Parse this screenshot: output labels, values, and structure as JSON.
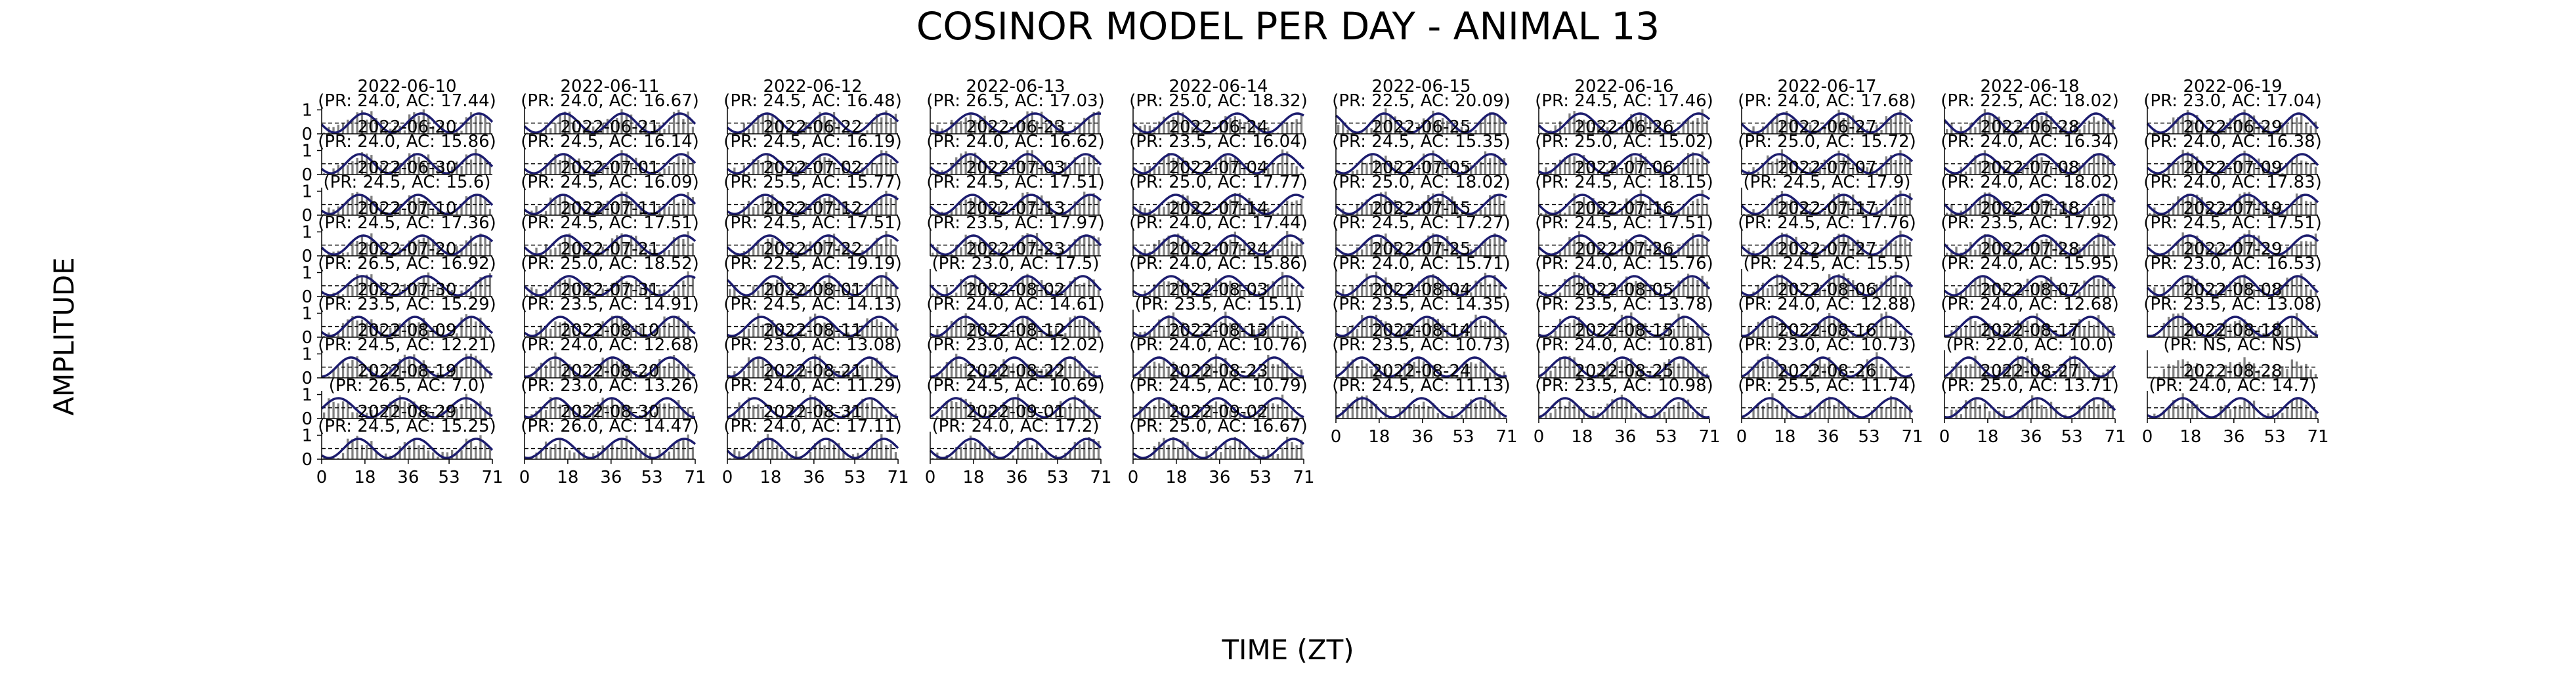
{
  "figure": {
    "title": "COSINOR MODEL PER DAY - ANIMAL 13",
    "xlabel": "TIME (ZT)",
    "ylabel": "AMPLITUDE"
  },
  "colors": {
    "bar": "#808080",
    "fit_curve": "#1c1c6e",
    "background": "#ffffff",
    "axis": "#000000",
    "mesor_line": "#000000"
  },
  "chart_data": {
    "type": "bar",
    "layout": {
      "rows": 9,
      "cols": 10
    },
    "x_ticks": [
      "0",
      "18",
      "36",
      "53",
      "71"
    ],
    "y_ticks": [
      "0",
      "1"
    ],
    "x_range": [
      0,
      71
    ],
    "y_range": [
      0,
      1.15
    ],
    "series_types": [
      "bar (normalized activity)",
      "line (cosinor fit)",
      "dashed line (mesor)"
    ],
    "panels": [
      {
        "date": "2022-06-10",
        "period": "24.0",
        "acrophase": "17.44",
        "label": "(PR: 24.0, AC: 17.44)"
      },
      {
        "date": "2022-06-11",
        "period": "24.0",
        "acrophase": "16.67",
        "label": "(PR: 24.0, AC: 16.67)"
      },
      {
        "date": "2022-06-12",
        "period": "24.5",
        "acrophase": "16.48",
        "label": "(PR: 24.5, AC: 16.48)"
      },
      {
        "date": "2022-06-13",
        "period": "26.5",
        "acrophase": "17.03",
        "label": "(PR: 26.5, AC: 17.03)"
      },
      {
        "date": "2022-06-14",
        "period": "25.0",
        "acrophase": "18.32",
        "label": "(PR: 25.0, AC: 18.32)"
      },
      {
        "date": "2022-06-15",
        "period": "22.5",
        "acrophase": "20.09",
        "label": "(PR: 22.5, AC: 20.09)"
      },
      {
        "date": "2022-06-16",
        "period": "24.5",
        "acrophase": "17.46",
        "label": "(PR: 24.5, AC: 17.46)"
      },
      {
        "date": "2022-06-17",
        "period": "24.0",
        "acrophase": "17.68",
        "label": "(PR: 24.0, AC: 17.68)"
      },
      {
        "date": "2022-06-18",
        "period": "22.5",
        "acrophase": "18.02",
        "label": "(PR: 22.5, AC: 18.02)"
      },
      {
        "date": "2022-06-19",
        "period": "23.0",
        "acrophase": "17.04",
        "label": "(PR: 23.0, AC: 17.04)"
      },
      {
        "date": "2022-06-20",
        "period": "24.0",
        "acrophase": "15.86",
        "label": "(PR: 24.0, AC: 15.86)"
      },
      {
        "date": "2022-06-21",
        "period": "24.5",
        "acrophase": "16.14",
        "label": "(PR: 24.5, AC: 16.14)"
      },
      {
        "date": "2022-06-22",
        "period": "24.5",
        "acrophase": "16.19",
        "label": "(PR: 24.5, AC: 16.19)"
      },
      {
        "date": "2022-06-23",
        "period": "24.0",
        "acrophase": "16.62",
        "label": "(PR: 24.0, AC: 16.62)"
      },
      {
        "date": "2022-06-24",
        "period": "23.5",
        "acrophase": "16.04",
        "label": "(PR: 23.5, AC: 16.04)"
      },
      {
        "date": "2022-06-25",
        "period": "24.5",
        "acrophase": "15.35",
        "label": "(PR: 24.5, AC: 15.35)"
      },
      {
        "date": "2022-06-26",
        "period": "25.0",
        "acrophase": "15.02",
        "label": "(PR: 25.0, AC: 15.02)"
      },
      {
        "date": "2022-06-27",
        "period": "25.0",
        "acrophase": "15.72",
        "label": "(PR: 25.0, AC: 15.72)"
      },
      {
        "date": "2022-06-28",
        "period": "24.0",
        "acrophase": "16.34",
        "label": "(PR: 24.0, AC: 16.34)"
      },
      {
        "date": "2022-06-29",
        "period": "24.0",
        "acrophase": "16.38",
        "label": "(PR: 24.0, AC: 16.38)"
      },
      {
        "date": "2022-06-30",
        "period": "24.5",
        "acrophase": "15.6",
        "label": "(PR: 24.5, AC: 15.6)"
      },
      {
        "date": "2022-07-01",
        "period": "24.5",
        "acrophase": "16.09",
        "label": "(PR: 24.5, AC: 16.09)"
      },
      {
        "date": "2022-07-02",
        "period": "25.5",
        "acrophase": "15.77",
        "label": "(PR: 25.5, AC: 15.77)"
      },
      {
        "date": "2022-07-03",
        "period": "24.5",
        "acrophase": "17.51",
        "label": "(PR: 24.5, AC: 17.51)"
      },
      {
        "date": "2022-07-04",
        "period": "25.0",
        "acrophase": "17.77",
        "label": "(PR: 25.0, AC: 17.77)"
      },
      {
        "date": "2022-07-05",
        "period": "25.0",
        "acrophase": "18.02",
        "label": "(PR: 25.0, AC: 18.02)"
      },
      {
        "date": "2022-07-06",
        "period": "24.5",
        "acrophase": "18.15",
        "label": "(PR: 24.5, AC: 18.15)"
      },
      {
        "date": "2022-07-07",
        "period": "24.5",
        "acrophase": "17.9",
        "label": "(PR: 24.5, AC: 17.9)"
      },
      {
        "date": "2022-07-08",
        "period": "24.0",
        "acrophase": "18.02",
        "label": "(PR: 24.0, AC: 18.02)"
      },
      {
        "date": "2022-07-09",
        "period": "24.0",
        "acrophase": "17.83",
        "label": "(PR: 24.0, AC: 17.83)"
      },
      {
        "date": "2022-07-10",
        "period": "24.5",
        "acrophase": "17.36",
        "label": "(PR: 24.5, AC: 17.36)"
      },
      {
        "date": "2022-07-11",
        "period": "24.5",
        "acrophase": "17.51",
        "label": "(PR: 24.5, AC: 17.51)"
      },
      {
        "date": "2022-07-12",
        "period": "24.5",
        "acrophase": "17.51",
        "label": "(PR: 24.5, AC: 17.51)"
      },
      {
        "date": "2022-07-13",
        "period": "23.5",
        "acrophase": "17.97",
        "label": "(PR: 23.5, AC: 17.97)"
      },
      {
        "date": "2022-07-14",
        "period": "24.0",
        "acrophase": "17.44",
        "label": "(PR: 24.0, AC: 17.44)"
      },
      {
        "date": "2022-07-15",
        "period": "24.5",
        "acrophase": "17.27",
        "label": "(PR: 24.5, AC: 17.27)"
      },
      {
        "date": "2022-07-16",
        "period": "24.5",
        "acrophase": "17.51",
        "label": "(PR: 24.5, AC: 17.51)"
      },
      {
        "date": "2022-07-17",
        "period": "24.5",
        "acrophase": "17.76",
        "label": "(PR: 24.5, AC: 17.76)"
      },
      {
        "date": "2022-07-18",
        "period": "23.5",
        "acrophase": "17.92",
        "label": "(PR: 23.5, AC: 17.92)"
      },
      {
        "date": "2022-07-19",
        "period": "24.5",
        "acrophase": "17.51",
        "label": "(PR: 24.5, AC: 17.51)"
      },
      {
        "date": "2022-07-20",
        "period": "26.5",
        "acrophase": "16.92",
        "label": "(PR: 26.5, AC: 16.92)"
      },
      {
        "date": "2022-07-21",
        "period": "25.0",
        "acrophase": "18.52",
        "label": "(PR: 25.0, AC: 18.52)"
      },
      {
        "date": "2022-07-22",
        "period": "22.5",
        "acrophase": "19.19",
        "label": "(PR: 22.5, AC: 19.19)"
      },
      {
        "date": "2022-07-23",
        "period": "23.0",
        "acrophase": "17.5",
        "label": "(PR: 23.0, AC: 17.5)"
      },
      {
        "date": "2022-07-24",
        "period": "24.0",
        "acrophase": "15.86",
        "label": "(PR: 24.0, AC: 15.86)"
      },
      {
        "date": "2022-07-25",
        "period": "24.0",
        "acrophase": "15.71",
        "label": "(PR: 24.0, AC: 15.71)"
      },
      {
        "date": "2022-07-26",
        "period": "24.0",
        "acrophase": "15.76",
        "label": "(PR: 24.0, AC: 15.76)"
      },
      {
        "date": "2022-07-27",
        "period": "24.5",
        "acrophase": "15.5",
        "label": "(PR: 24.5, AC: 15.5)"
      },
      {
        "date": "2022-07-28",
        "period": "24.0",
        "acrophase": "15.95",
        "label": "(PR: 24.0, AC: 15.95)"
      },
      {
        "date": "2022-07-29",
        "period": "23.0",
        "acrophase": "16.53",
        "label": "(PR: 23.0, AC: 16.53)"
      },
      {
        "date": "2022-07-30",
        "period": "23.5",
        "acrophase": "15.29",
        "label": "(PR: 23.5, AC: 15.29)"
      },
      {
        "date": "2022-07-31",
        "period": "23.5",
        "acrophase": "14.91",
        "label": "(PR: 23.5, AC: 14.91)"
      },
      {
        "date": "2022-08-01",
        "period": "24.5",
        "acrophase": "14.13",
        "label": "(PR: 24.5, AC: 14.13)"
      },
      {
        "date": "2022-08-02",
        "period": "24.0",
        "acrophase": "14.61",
        "label": "(PR: 24.0, AC: 14.61)"
      },
      {
        "date": "2022-08-03",
        "period": "23.5",
        "acrophase": "15.1",
        "label": "(PR: 23.5, AC: 15.1)"
      },
      {
        "date": "2022-08-04",
        "period": "23.5",
        "acrophase": "14.35",
        "label": "(PR: 23.5, AC: 14.35)"
      },
      {
        "date": "2022-08-05",
        "period": "23.5",
        "acrophase": "13.78",
        "label": "(PR: 23.5, AC: 13.78)"
      },
      {
        "date": "2022-08-06",
        "period": "24.0",
        "acrophase": "12.88",
        "label": "(PR: 24.0, AC: 12.88)"
      },
      {
        "date": "2022-08-07",
        "period": "24.0",
        "acrophase": "12.68",
        "label": "(PR: 24.0, AC: 12.68)"
      },
      {
        "date": "2022-08-08",
        "period": "23.5",
        "acrophase": "13.08",
        "label": "(PR: 23.5, AC: 13.08)"
      },
      {
        "date": "2022-08-09",
        "period": "24.5",
        "acrophase": "12.21",
        "label": "(PR: 24.5, AC: 12.21)"
      },
      {
        "date": "2022-08-10",
        "period": "24.0",
        "acrophase": "12.68",
        "label": "(PR: 24.0, AC: 12.68)"
      },
      {
        "date": "2022-08-11",
        "period": "23.0",
        "acrophase": "13.08",
        "label": "(PR: 23.0, AC: 13.08)"
      },
      {
        "date": "2022-08-12",
        "period": "23.0",
        "acrophase": "12.02",
        "label": "(PR: 23.0, AC: 12.02)"
      },
      {
        "date": "2022-08-13",
        "period": "24.0",
        "acrophase": "10.76",
        "label": "(PR: 24.0, AC: 10.76)"
      },
      {
        "date": "2022-08-14",
        "period": "23.5",
        "acrophase": "10.73",
        "label": "(PR: 23.5, AC: 10.73)"
      },
      {
        "date": "2022-08-15",
        "period": "24.0",
        "acrophase": "10.81",
        "label": "(PR: 24.0, AC: 10.81)"
      },
      {
        "date": "2022-08-16",
        "period": "23.0",
        "acrophase": "10.73",
        "label": "(PR: 23.0, AC: 10.73)"
      },
      {
        "date": "2022-08-17",
        "period": "22.0",
        "acrophase": "10.0",
        "label": "(PR: 22.0, AC: 10.0)"
      },
      {
        "date": "2022-08-18",
        "period": "NS",
        "acrophase": "NS",
        "label": "(PR: NS, AC: NS)"
      },
      {
        "date": "2022-08-19",
        "period": "26.5",
        "acrophase": "7.0",
        "label": "(PR: 26.5, AC: 7.0)"
      },
      {
        "date": "2022-08-20",
        "period": "23.0",
        "acrophase": "13.26",
        "label": "(PR: 23.0, AC: 13.26)"
      },
      {
        "date": "2022-08-21",
        "period": "24.0",
        "acrophase": "11.29",
        "label": "(PR: 24.0, AC: 11.29)"
      },
      {
        "date": "2022-08-22",
        "period": "24.5",
        "acrophase": "10.69",
        "label": "(PR: 24.5, AC: 10.69)"
      },
      {
        "date": "2022-08-23",
        "period": "24.5",
        "acrophase": "10.79",
        "label": "(PR: 24.5, AC: 10.79)"
      },
      {
        "date": "2022-08-24",
        "period": "24.5",
        "acrophase": "11.13",
        "label": "(PR: 24.5, AC: 11.13)"
      },
      {
        "date": "2022-08-25",
        "period": "23.5",
        "acrophase": "10.98",
        "label": "(PR: 23.5, AC: 10.98)"
      },
      {
        "date": "2022-08-26",
        "period": "25.5",
        "acrophase": "11.74",
        "label": "(PR: 25.5, AC: 11.74)"
      },
      {
        "date": "2022-08-27",
        "period": "25.0",
        "acrophase": "13.71",
        "label": "(PR: 25.0, AC: 13.71)"
      },
      {
        "date": "2022-08-28",
        "period": "24.0",
        "acrophase": "14.7",
        "label": "(PR: 24.0, AC: 14.7)"
      },
      {
        "date": "2022-08-29",
        "period": "24.5",
        "acrophase": "15.25",
        "label": "(PR: 24.5, AC: 15.25)"
      },
      {
        "date": "2022-08-30",
        "period": "26.0",
        "acrophase": "14.47",
        "label": "(PR: 26.0, AC: 14.47)"
      },
      {
        "date": "2022-08-31",
        "period": "24.0",
        "acrophase": "17.11",
        "label": "(PR: 24.0, AC: 17.11)"
      },
      {
        "date": "2022-09-01",
        "period": "24.0",
        "acrophase": "17.2",
        "label": "(PR: 24.0, AC: 17.2)"
      },
      {
        "date": "2022-09-02",
        "period": "25.0",
        "acrophase": "16.67",
        "label": "(PR: 25.0, AC: 16.67)"
      }
    ]
  }
}
